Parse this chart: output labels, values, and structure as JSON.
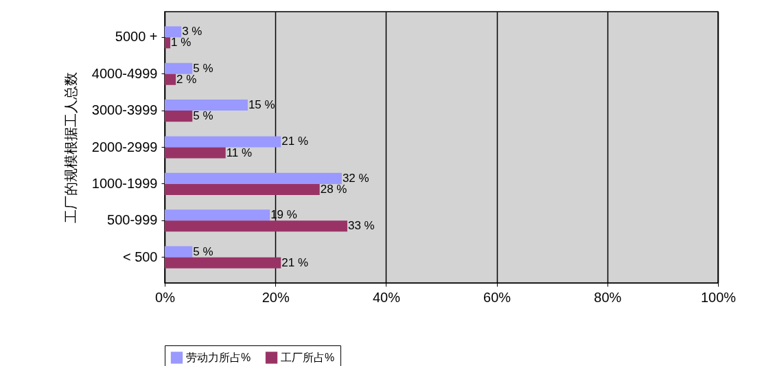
{
  "chart_data": {
    "type": "bar",
    "orientation": "horizontal",
    "ylabel": "工厂的规模根据工人总数",
    "categories": [
      "5000 +",
      "4000-4999",
      "3000-3999",
      "2000-2999",
      "1000-1999",
      "500-999",
      "< 500"
    ],
    "series": [
      {
        "name": "劳动力所占%",
        "color": "#9999ff",
        "values": [
          3,
          5,
          15,
          21,
          32,
          19,
          5
        ],
        "value_labels": [
          "3 %",
          "5 %",
          "15 %",
          "21 %",
          "32 %",
          "19 %",
          "5 %"
        ]
      },
      {
        "name": "工厂所占%",
        "color": "#993366",
        "values": [
          1,
          2,
          5,
          11,
          28,
          33,
          21
        ],
        "value_labels": [
          "1 %",
          "2 %",
          "5 %",
          "11 %",
          "28 %",
          "33 %",
          "21 %"
        ]
      }
    ],
    "xlim": [
      0,
      100
    ],
    "xticks": [
      {
        "value": 0,
        "label": "0%"
      },
      {
        "value": 20,
        "label": "20%"
      },
      {
        "value": 40,
        "label": "40%"
      },
      {
        "value": 60,
        "label": "60%"
      },
      {
        "value": 80,
        "label": "80%"
      },
      {
        "value": 100,
        "label": "100%"
      }
    ],
    "grid": "x",
    "legend": "bottom"
  }
}
